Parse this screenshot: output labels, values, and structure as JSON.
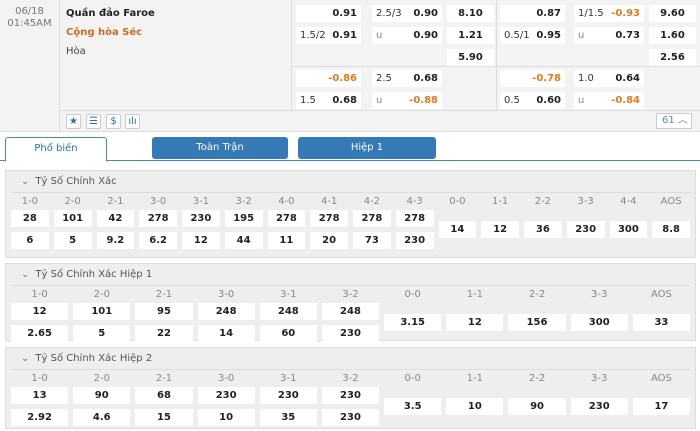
{
  "event": {
    "date": "06/18",
    "time": "01:45AM",
    "home": "Quần đảo Faroe",
    "away": "Cộng hòa Séc",
    "draw": "Hòa",
    "ft": {
      "hdp": {
        "line": "1.5/2",
        "home": "0.91",
        "away": "0.91"
      },
      "ou": {
        "line": "2.5/3",
        "over": "0.90",
        "under_label": "u",
        "under": "0.90"
      },
      "x12": {
        "home": "8.10",
        "away": "1.21",
        "draw": "5.90"
      }
    },
    "ft2": {
      "hdp": {
        "line": "1.5",
        "home": "-0.86",
        "away": "0.68"
      },
      "ou": {
        "line": "2.5",
        "over": "0.68",
        "under_label": "u",
        "under": "-0.88"
      }
    },
    "h1": {
      "hdp": {
        "line": "0.5/1",
        "home": "0.87",
        "away": "0.95"
      },
      "ou": {
        "line": "1/1.5",
        "over": "-0.93",
        "under_label": "u",
        "under": "0.73"
      },
      "x12": {
        "home": "9.60",
        "away": "1.60",
        "draw": "2.56"
      }
    },
    "h1b": {
      "hdp": {
        "line": "0.5",
        "home": "-0.78",
        "away": "0.60"
      },
      "ou": {
        "line": "1.0",
        "over": "0.64",
        "under_label": "u",
        "under": "-0.84"
      }
    },
    "icons": [
      "star-icon",
      "list-icon",
      "dollar-icon",
      "stats-icon"
    ],
    "more_count": "61"
  },
  "tabs": [
    {
      "label": "Phổ biến",
      "active": true
    },
    {
      "label": "Toàn Trận"
    },
    {
      "label": "Hiệp 1"
    }
  ],
  "colors": {
    "accent": "#357ab6",
    "negative": "#e07b1e",
    "away_team": "#d2691e"
  },
  "sections": [
    {
      "title": "Tỷ Số Chính Xác",
      "cols": [
        "1-0",
        "2-0",
        "2-1",
        "3-0",
        "3-1",
        "3-2",
        "4-0",
        "4-1",
        "4-2",
        "4-3",
        "0-0",
        "1-1",
        "2-2",
        "3-3",
        "4-4",
        "AOS"
      ],
      "row1": [
        "28",
        "101",
        "42",
        "278",
        "230",
        "195",
        "278",
        "278",
        "278",
        "278"
      ],
      "row2": [
        "6",
        "5",
        "9.2",
        "6.2",
        "12",
        "44",
        "11",
        "20",
        "73",
        "230"
      ],
      "single": [
        "14",
        "12",
        "36",
        "230",
        "300",
        "8.8"
      ]
    },
    {
      "title": "Tỷ Số Chính Xác Hiệp 1",
      "cols": [
        "1-0",
        "2-0",
        "2-1",
        "3-0",
        "3-1",
        "3-2",
        "0-0",
        "1-1",
        "2-2",
        "3-3",
        "AOS"
      ],
      "row1": [
        "12",
        "101",
        "95",
        "248",
        "248",
        "248"
      ],
      "row2": [
        "2.65",
        "5",
        "22",
        "14",
        "60",
        "230"
      ],
      "single": [
        "3.15",
        "12",
        "156",
        "300",
        "33"
      ]
    },
    {
      "title": "Tỷ Số Chính Xác Hiệp 2",
      "cols": [
        "1-0",
        "2-0",
        "2-1",
        "3-0",
        "3-1",
        "3-2",
        "0-0",
        "1-1",
        "2-2",
        "3-3",
        "AOS"
      ],
      "row1": [
        "13",
        "90",
        "68",
        "230",
        "230",
        "230"
      ],
      "row2": [
        "2.92",
        "4.6",
        "15",
        "10",
        "35",
        "230"
      ],
      "single": [
        "3.5",
        "10",
        "90",
        "230",
        "17"
      ]
    }
  ]
}
